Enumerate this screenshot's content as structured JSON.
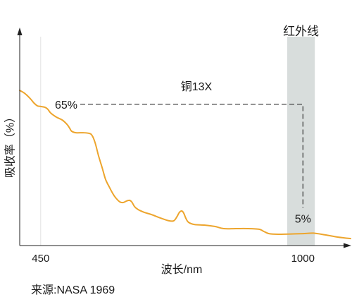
{
  "chart_data": {
    "type": "line",
    "xlabel": "波长/nm",
    "ylabel": "吸收率（%）",
    "xlim": [
      406,
      1100
    ],
    "ylim": [
      0,
      100
    ],
    "x_ticks": [
      450,
      1000
    ],
    "grid": true,
    "series": [
      {
        "color": "#EDA52D",
        "x": [
          406,
          416,
          427,
          436,
          443,
          450,
          459,
          465,
          471,
          483,
          495,
          505,
          511,
          515,
          524,
          539,
          552,
          558,
          564,
          571,
          579,
          586,
          594,
          601,
          608,
          616,
          623,
          630,
          636,
          641,
          647,
          654,
          667,
          682,
          701,
          719,
          729,
          735,
          741,
          746,
          750,
          755,
          760,
          772,
          793,
          815,
          834,
          859,
          884,
          908,
          918,
          929,
          948,
          970,
          1000,
          1022,
          1047,
          1073,
          1100
        ],
        "y": [
          71.4,
          70.1,
          67.9,
          65.6,
          64.3,
          64.0,
          63.6,
          62.7,
          61.0,
          59.1,
          57.8,
          55.8,
          53.9,
          52.6,
          51.9,
          51.9,
          51.6,
          50.6,
          47.4,
          41.6,
          35.7,
          30.5,
          26.9,
          24.0,
          21.8,
          20.1,
          19.8,
          20.5,
          20.8,
          20.1,
          17.9,
          16.6,
          15.3,
          14.3,
          12.7,
          11.4,
          11.4,
          13.0,
          15.3,
          15.9,
          14.9,
          12.3,
          10.7,
          9.7,
          9.4,
          8.8,
          7.8,
          7.8,
          7.8,
          7.5,
          6.5,
          5.5,
          5.2,
          5.3,
          5.5,
          5.7,
          4.9,
          3.9,
          3.2
        ]
      }
    ],
    "shaded_region": {
      "label": "红外线",
      "x": [
        967,
        1025
      ],
      "color": "#D8DDDC"
    },
    "annotation": {
      "label": "铜13X",
      "from_label": "65%",
      "from_value": 65,
      "to_label": "5%",
      "to_value": 5,
      "to_x": 1000
    },
    "source": "来源:NASA 1969"
  }
}
